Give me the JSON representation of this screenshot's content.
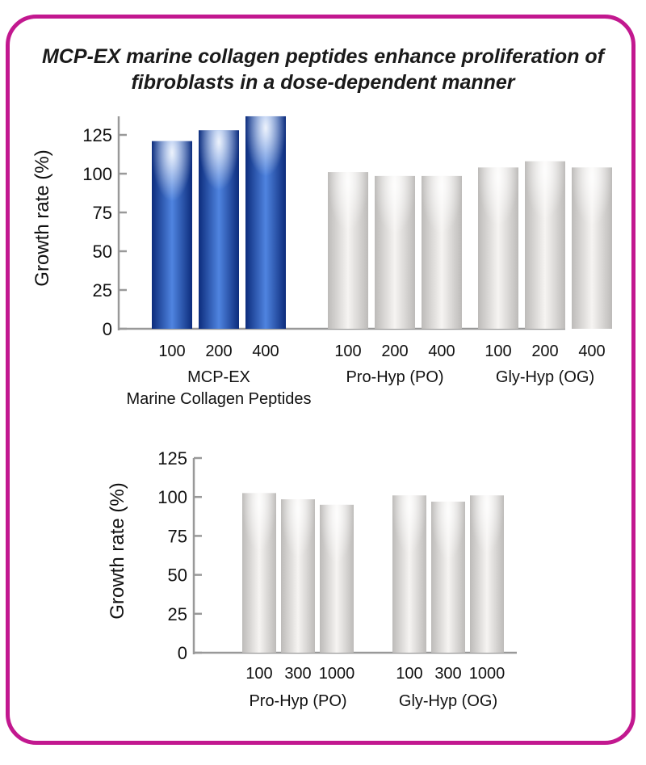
{
  "title_lines": [
    "MCP-EX marine collagen peptides enhance proliferation of",
    "fibroblasts in a dose-dependent manner"
  ],
  "colors": {
    "frame": "#c2188f",
    "mcp": "#123c9c",
    "control": "#d6d4d2",
    "axis": "#999999"
  },
  "chart_data": [
    {
      "type": "bar",
      "title": "",
      "ylabel": "Growth rate (%)",
      "ylim": [
        0,
        137
      ],
      "yticks": [
        0,
        25,
        50,
        75,
        100,
        125
      ],
      "groups": [
        {
          "label_lines": [
            "MCP-EX",
            "Marine Collagen Peptides"
          ],
          "style": "mcp",
          "doses": [
            "100",
            "200",
            "400"
          ],
          "values": [
            121,
            128,
            137
          ]
        },
        {
          "label_lines": [
            "Pro-Hyp (PO)"
          ],
          "style": "control",
          "doses": [
            "100",
            "200",
            "400"
          ],
          "values": [
            101,
            98.5,
            98.5
          ]
        },
        {
          "label_lines": [
            "Gly-Hyp (OG)"
          ],
          "style": "control",
          "doses": [
            "100",
            "200",
            "400"
          ],
          "values": [
            104,
            108,
            104
          ]
        }
      ]
    },
    {
      "type": "bar",
      "title": "",
      "ylabel": "Growth rate (%)",
      "ylim": [
        0,
        125
      ],
      "yticks": [
        0,
        25,
        50,
        75,
        100,
        125
      ],
      "groups": [
        {
          "label_lines": [
            "Pro-Hyp (PO)"
          ],
          "style": "control",
          "doses": [
            "100",
            "300",
            "1000"
          ],
          "values": [
            102.5,
            98.5,
            95
          ]
        },
        {
          "label_lines": [
            "Gly-Hyp (OG)"
          ],
          "style": "control",
          "doses": [
            "100",
            "300",
            "1000"
          ],
          "values": [
            101,
            97,
            101
          ]
        }
      ]
    }
  ]
}
